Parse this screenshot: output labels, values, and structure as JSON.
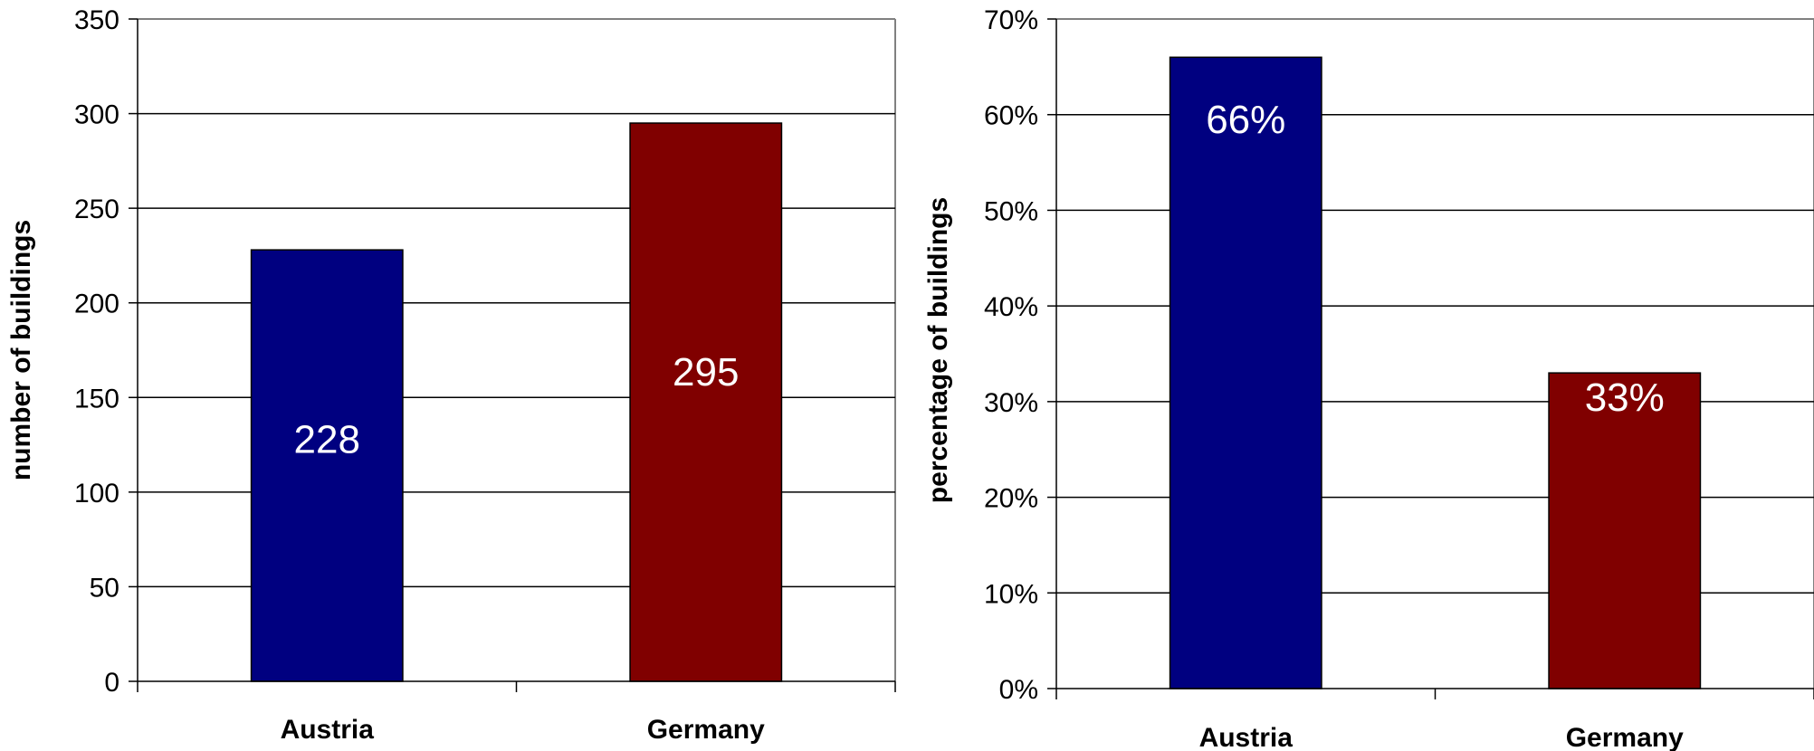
{
  "colors": {
    "austria": "#000080",
    "germany": "#800000",
    "grid": "#000000",
    "frame": "#808080",
    "label_text": "#ffffff"
  },
  "chart_data": [
    {
      "type": "bar",
      "categories": [
        "Austria",
        "Germany"
      ],
      "values": [
        228,
        295
      ],
      "data_labels": [
        "228",
        "295"
      ],
      "ylabel": "number of buildings",
      "ylim": [
        0,
        350
      ],
      "yticks": [
        0,
        50,
        100,
        150,
        200,
        250,
        300,
        350
      ],
      "ytick_labels": [
        "0",
        "50",
        "100",
        "150",
        "200",
        "250",
        "300",
        "350"
      ],
      "grid": true,
      "legend": "none"
    },
    {
      "type": "bar",
      "categories": [
        "Austria",
        "Germany"
      ],
      "values": [
        66,
        33
      ],
      "data_labels": [
        "66%",
        "33%"
      ],
      "ylabel": "percentage of buildings",
      "ylim": [
        0,
        70
      ],
      "yticks": [
        0,
        10,
        20,
        30,
        40,
        50,
        60,
        70
      ],
      "ytick_labels": [
        "0%",
        "10%",
        "20%",
        "30%",
        "40%",
        "50%",
        "60%",
        "70%"
      ],
      "grid": true,
      "legend": "none"
    }
  ]
}
